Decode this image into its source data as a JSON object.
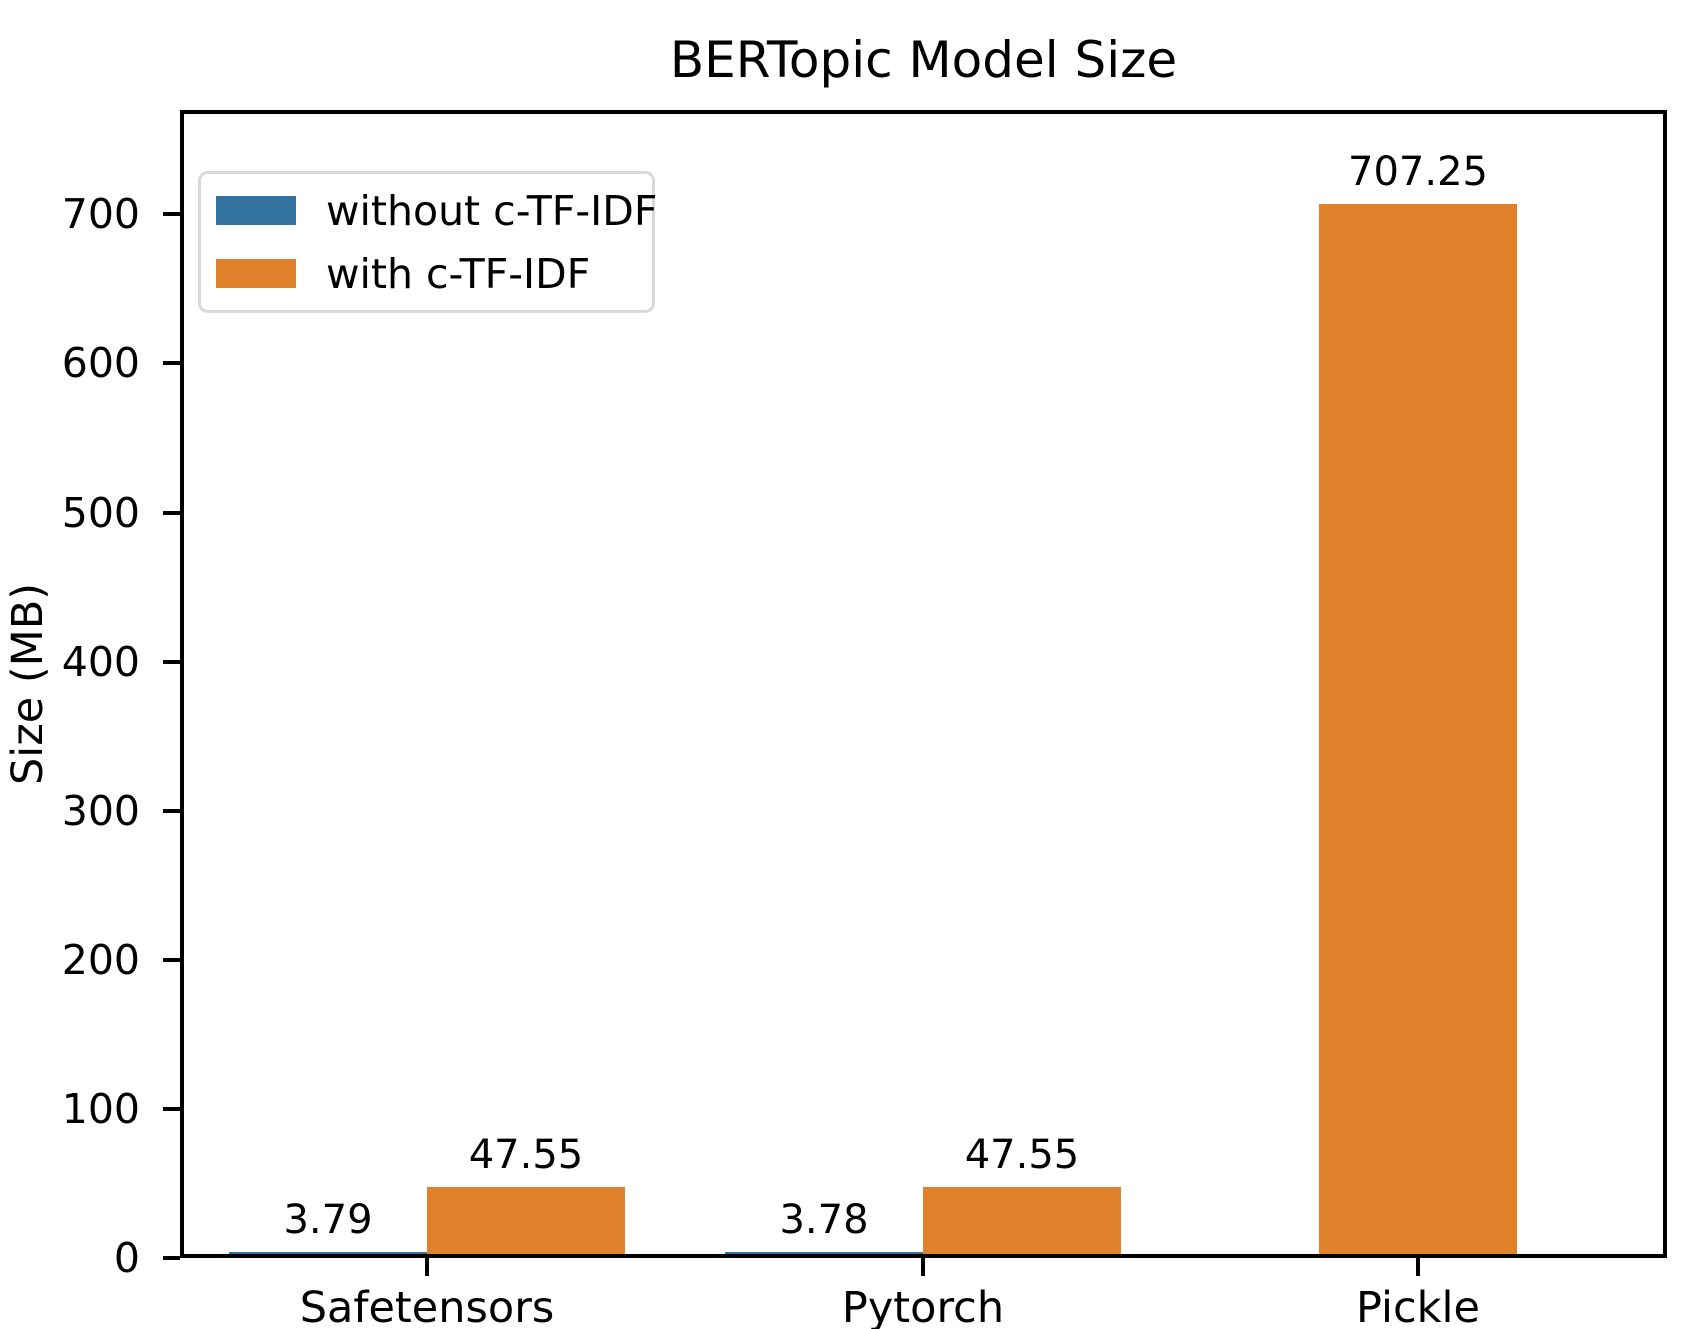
{
  "chart_data": {
    "type": "bar",
    "title": "BERTopic Model Size",
    "xlabel": "",
    "ylabel": "Size (MB)",
    "categories": [
      "Safetensors",
      "Pytorch",
      "Pickle"
    ],
    "series": [
      {
        "name": "without c-TF-IDF",
        "color": "#31739e",
        "values": [
          3.79,
          3.78,
          null
        ]
      },
      {
        "name": "with c-TF-IDF",
        "color": "#e0822c",
        "values": [
          47.55,
          47.55,
          707.25
        ]
      }
    ],
    "value_labels": [
      [
        "3.79",
        "3.78",
        null
      ],
      [
        "47.55",
        "47.55",
        "707.25"
      ]
    ],
    "yticks": [
      0,
      100,
      200,
      300,
      400,
      500,
      600,
      700
    ],
    "ylim": [
      0,
      770
    ],
    "grid": false,
    "legend_position": "upper left",
    "axis_color": "#000000",
    "text_color": "#000000",
    "background_color": "#ffffff",
    "legend_border_color": "#d9d9d9"
  }
}
